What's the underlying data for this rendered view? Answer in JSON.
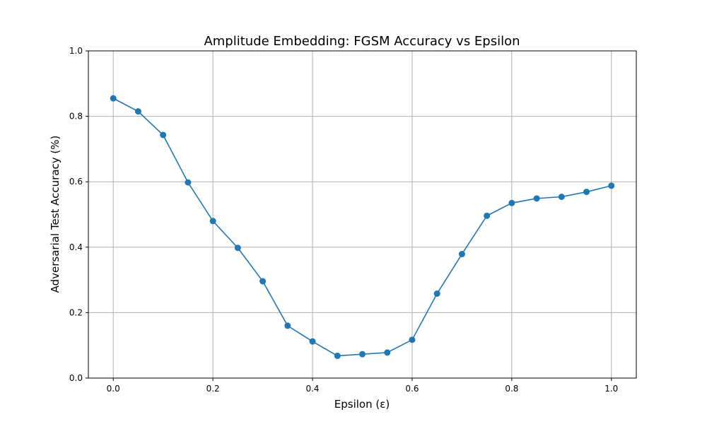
{
  "chart_data": {
    "type": "line",
    "title": "Amplitude Embedding: FGSM Accuracy vs Epsilon",
    "xlabel": "Epsilon (ε)",
    "ylabel": "Adversarial Test Accuracy (%)",
    "xlim": [
      -0.05,
      1.05
    ],
    "ylim": [
      0.0,
      1.0
    ],
    "x_ticks": [
      0.0,
      0.2,
      0.4,
      0.6,
      0.8,
      1.0
    ],
    "x_tick_labels": [
      "0.0",
      "0.2",
      "0.4",
      "0.6",
      "0.8",
      "1.0"
    ],
    "y_ticks": [
      0.0,
      0.2,
      0.4,
      0.6,
      0.8,
      1.0
    ],
    "y_tick_labels": [
      "0.0",
      "0.2",
      "0.4",
      "0.6",
      "0.8",
      "1.0"
    ],
    "grid": true,
    "color": "#1f77b4",
    "marker": "circle",
    "x": [
      0.0,
      0.05,
      0.1,
      0.15,
      0.2,
      0.25,
      0.3,
      0.35,
      0.4,
      0.45,
      0.5,
      0.55,
      0.6,
      0.65,
      0.7,
      0.75,
      0.8,
      0.85,
      0.9,
      0.95,
      1.0
    ],
    "y": [
      0.855,
      0.815,
      0.743,
      0.598,
      0.48,
      0.398,
      0.296,
      0.16,
      0.112,
      0.068,
      0.073,
      0.078,
      0.117,
      0.258,
      0.379,
      0.496,
      0.535,
      0.549,
      0.554,
      0.569,
      0.588
    ]
  }
}
